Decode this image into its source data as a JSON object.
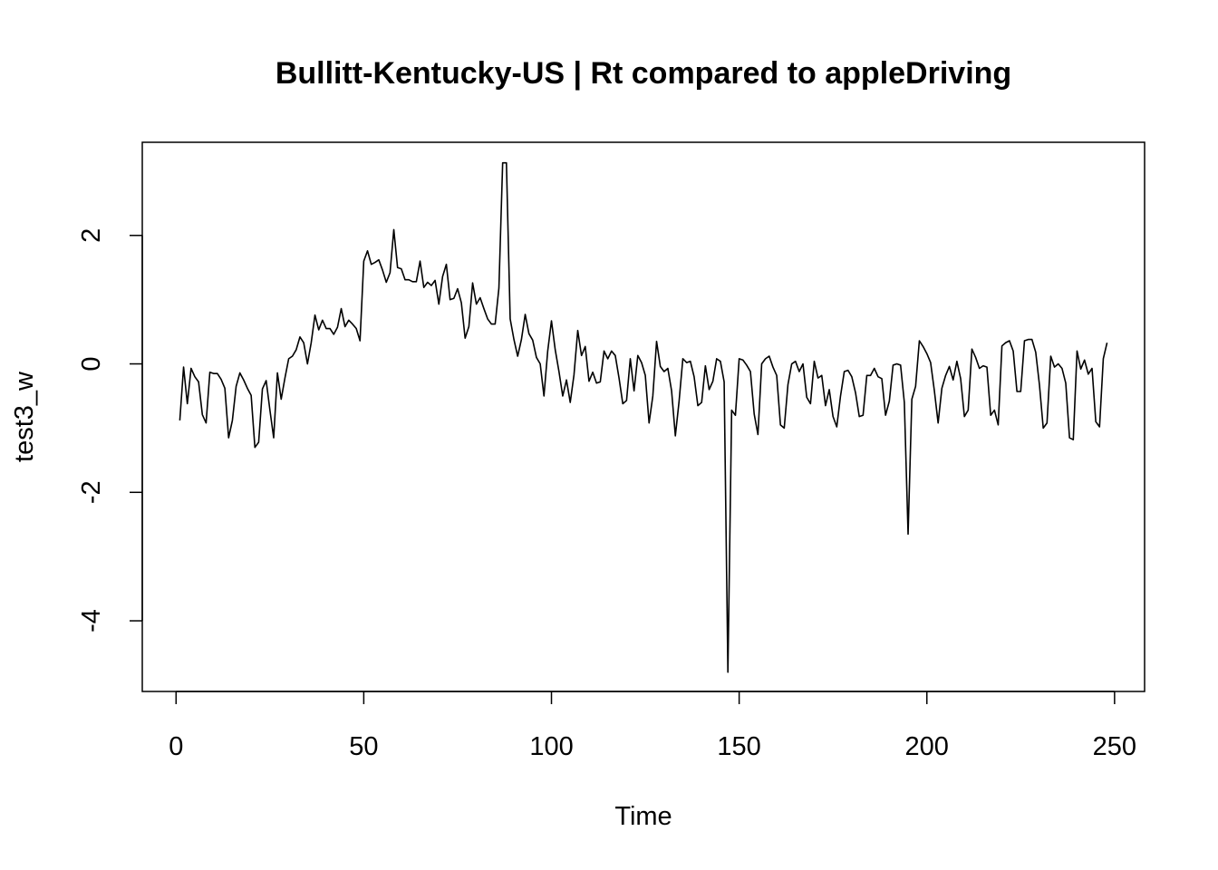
{
  "chart_data": {
    "type": "line",
    "title": "Bullitt-Kentucky-US | Rt compared to appleDriving",
    "xlabel": "Time",
    "ylabel": "test3_w",
    "xlim": [
      -9,
      258
    ],
    "ylim": [
      -5.1,
      3.45
    ],
    "x_ticks": [
      0,
      50,
      100,
      150,
      200,
      250
    ],
    "y_ticks": [
      -4,
      -2,
      0,
      2
    ],
    "x_tick_labels": [
      "0",
      "50",
      "100",
      "150",
      "200",
      "250"
    ],
    "y_tick_labels": [
      "-4",
      "-2",
      "0",
      "2"
    ],
    "grid": false,
    "legend": "none",
    "series": [
      {
        "x_start": 1,
        "values": [
          -0.88,
          -0.05,
          -0.62,
          -0.07,
          -0.2,
          -0.28,
          -0.79,
          -0.92,
          -0.13,
          -0.15,
          -0.15,
          -0.24,
          -0.38,
          -1.15,
          -0.88,
          -0.35,
          -0.14,
          -0.25,
          -0.38,
          -0.49,
          -1.3,
          -1.22,
          -0.39,
          -0.26,
          -0.72,
          -1.15,
          -0.14,
          -0.55,
          -0.22,
          0.08,
          0.12,
          0.22,
          0.42,
          0.33,
          0.0,
          0.33,
          0.76,
          0.53,
          0.68,
          0.55,
          0.55,
          0.46,
          0.57,
          0.86,
          0.58,
          0.68,
          0.62,
          0.55,
          0.36,
          1.6,
          1.76,
          1.55,
          1.58,
          1.62,
          1.46,
          1.27,
          1.42,
          2.09,
          1.5,
          1.48,
          1.31,
          1.31,
          1.28,
          1.28,
          1.6,
          1.19,
          1.27,
          1.22,
          1.3,
          0.93,
          1.36,
          1.55,
          1.0,
          1.02,
          1.17,
          0.95,
          0.4,
          0.58,
          1.26,
          0.93,
          1.03,
          0.86,
          0.7,
          0.62,
          0.62,
          1.18,
          3.13,
          3.13,
          0.7,
          0.38,
          0.12,
          0.38,
          0.77,
          0.47,
          0.37,
          0.1,
          0.0,
          -0.5,
          0.2,
          0.67,
          0.22,
          -0.12,
          -0.5,
          -0.25,
          -0.6,
          -0.17,
          0.52,
          0.13,
          0.27,
          -0.27,
          -0.13,
          -0.3,
          -0.28,
          0.2,
          0.08,
          0.2,
          0.13,
          -0.22,
          -0.62,
          -0.57,
          0.08,
          -0.42,
          0.13,
          0.02,
          -0.18,
          -0.92,
          -0.5,
          0.35,
          -0.04,
          -0.12,
          -0.07,
          -0.42,
          -1.12,
          -0.58,
          0.08,
          0.02,
          0.04,
          -0.2,
          -0.65,
          -0.6,
          -0.03,
          -0.4,
          -0.27,
          0.08,
          0.04,
          -0.28,
          -4.8,
          -0.72,
          -0.8,
          0.08,
          0.06,
          -0.02,
          -0.12,
          -0.78,
          -1.1,
          0.0,
          0.08,
          0.12,
          -0.05,
          -0.18,
          -0.95,
          -1.0,
          -0.32,
          0.0,
          0.04,
          -0.12,
          0.0,
          -0.52,
          -0.62,
          0.04,
          -0.22,
          -0.18,
          -0.65,
          -0.4,
          -0.82,
          -0.98,
          -0.5,
          -0.12,
          -0.1,
          -0.2,
          -0.45,
          -0.82,
          -0.8,
          -0.18,
          -0.18,
          -0.07,
          -0.2,
          -0.23,
          -0.8,
          -0.58,
          -0.02,
          0.0,
          -0.02,
          -0.6,
          -2.65,
          -0.55,
          -0.35,
          0.36,
          0.27,
          0.16,
          0.02,
          -0.42,
          -0.92,
          -0.38,
          -0.18,
          -0.04,
          -0.25,
          0.04,
          -0.23,
          -0.82,
          -0.72,
          0.23,
          0.1,
          -0.07,
          -0.03,
          -0.05,
          -0.8,
          -0.72,
          -0.95,
          0.28,
          0.33,
          0.36,
          0.2,
          -0.43,
          -0.43,
          0.36,
          0.38,
          0.38,
          0.18,
          -0.33,
          -1.0,
          -0.92,
          0.12,
          -0.05,
          0.0,
          -0.07,
          -0.3,
          -1.15,
          -1.18,
          0.2,
          -0.08,
          0.06,
          -0.16,
          -0.07,
          -0.9,
          -0.98,
          0.08,
          0.33
        ]
      }
    ]
  }
}
